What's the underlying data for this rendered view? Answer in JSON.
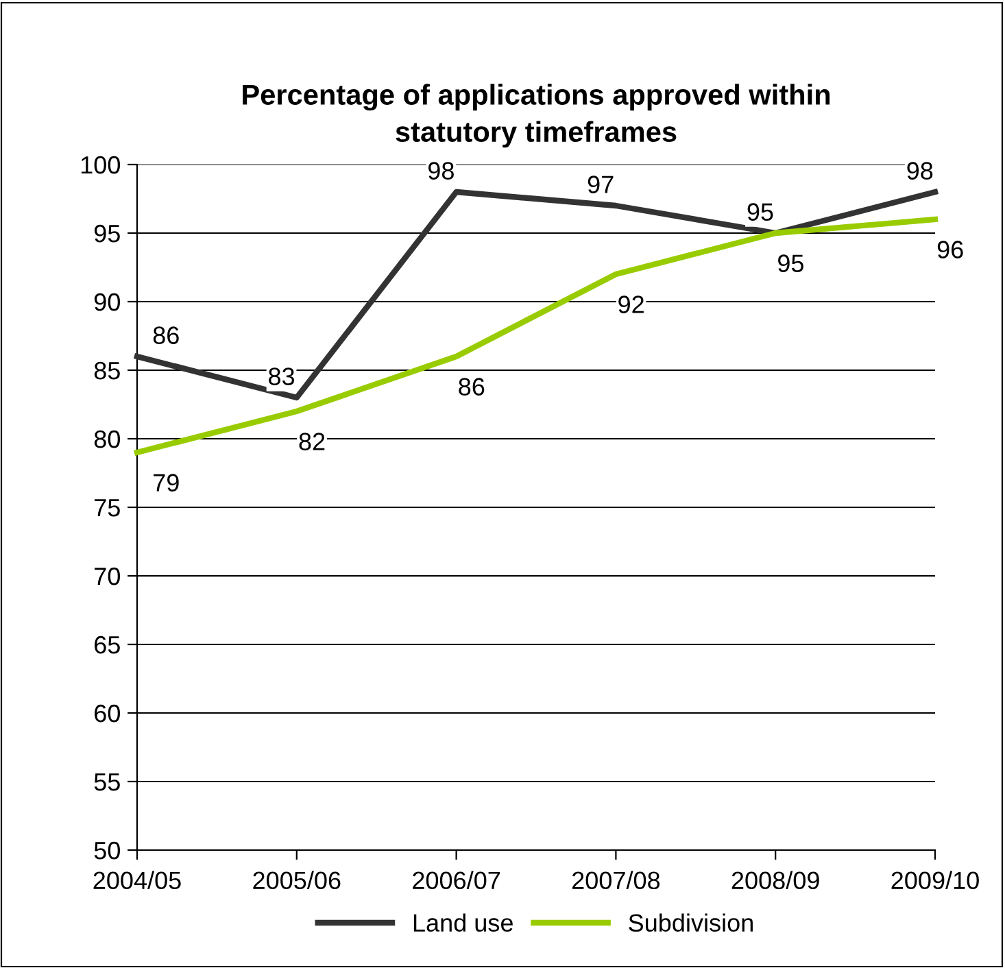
{
  "chart_data": {
    "type": "line",
    "title": "Percentage of applications approved within\nstatutory timeframes",
    "categories": [
      "2004/05",
      "2005/06",
      "2006/07",
      "2007/08",
      "2008/09",
      "2009/10"
    ],
    "series": [
      {
        "name": "Land use",
        "color": "#333333",
        "values": [
          86,
          83,
          98,
          97,
          95,
          98
        ]
      },
      {
        "name": "Subdivision",
        "color": "#99cc00",
        "values": [
          79,
          82,
          86,
          92,
          95,
          96
        ]
      }
    ],
    "ylim": [
      50,
      100
    ],
    "yticks": [
      50,
      55,
      60,
      65,
      70,
      75,
      80,
      85,
      90,
      95,
      100
    ],
    "grid": "y",
    "legend": "bottom",
    "data_labels": true,
    "marker": "none",
    "line_style": "solid"
  }
}
